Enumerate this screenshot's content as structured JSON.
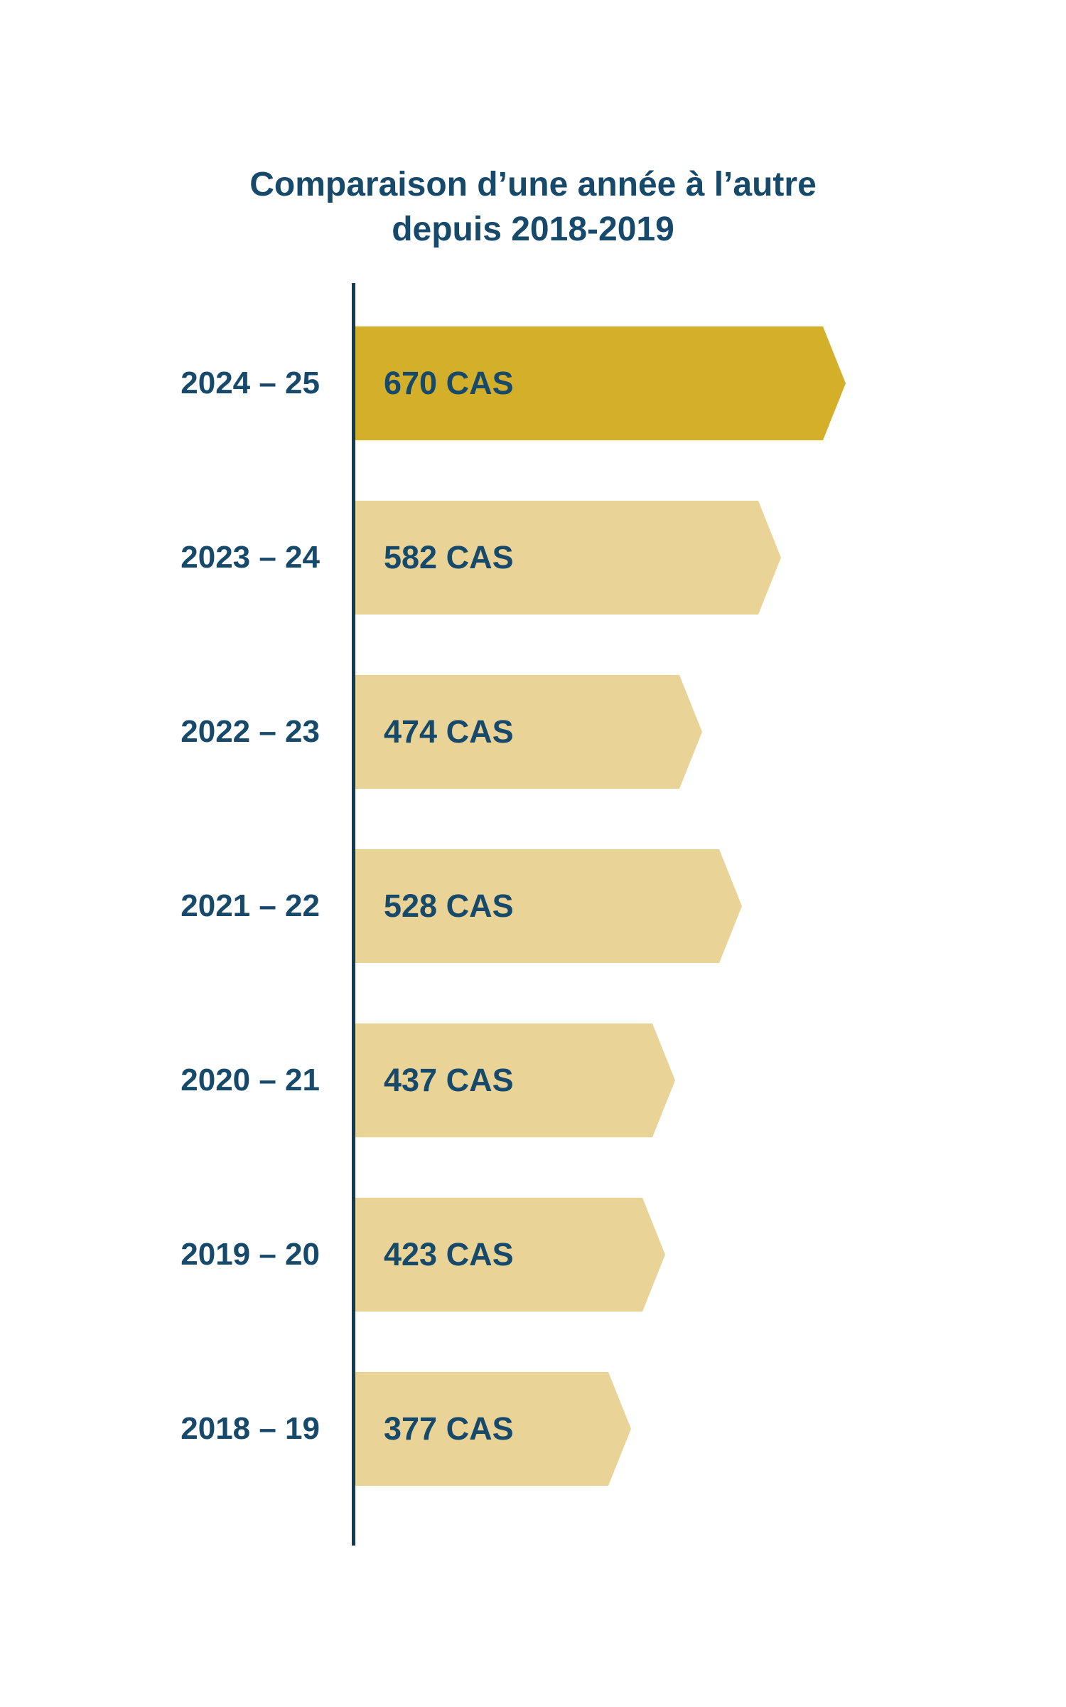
{
  "title": {
    "line1": "Comparaison d’une année à l’autre",
    "line2": "depuis 2018-2019"
  },
  "chart_data": {
    "type": "bar",
    "orientation": "horizontal",
    "title": "Comparaison d’une année à l’autre depuis 2018-2019",
    "categories": [
      "2024 – 25",
      "2023 – 24",
      "2022 – 23",
      "2021 – 22",
      "2020 – 21",
      "2019 – 20",
      "2018 – 19"
    ],
    "values": [
      670,
      582,
      474,
      528,
      437,
      423,
      377
    ],
    "value_labels": [
      "670 CAS",
      "582 CAS",
      "474 CAS",
      "528 CAS",
      "437 CAS",
      "423 CAS",
      "377 CAS"
    ],
    "unit": "CAS",
    "xlim": [
      0,
      700
    ],
    "grid": false,
    "legend": "none",
    "highlight_index": 0,
    "colors": {
      "highlight_bar": "#D4B02A",
      "bar": "#E9D396",
      "text": "#17496B",
      "axis": "#0E3C59",
      "background": "#FFFFFF"
    }
  }
}
